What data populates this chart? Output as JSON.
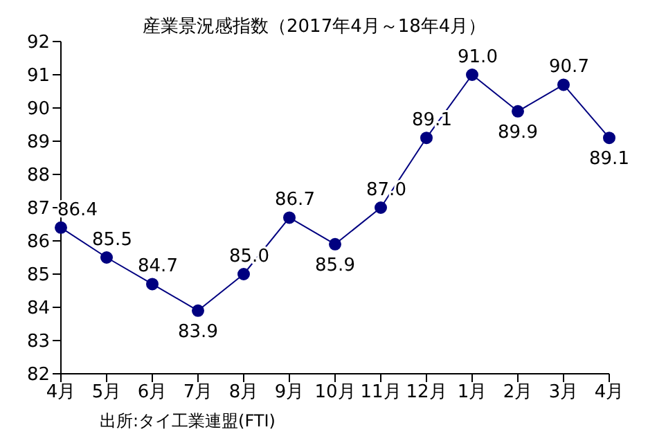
{
  "chart_data": {
    "type": "line",
    "title": "産業景況感指数（2017年4月～18年4月）",
    "categories": [
      "4月",
      "5月",
      "6月",
      "7月",
      "8月",
      "9月",
      "10月",
      "11月",
      "12月",
      "1月",
      "2月",
      "3月",
      "4月"
    ],
    "series": [
      {
        "color": "#000080",
        "values": [
          86.4,
          85.5,
          84.7,
          83.9,
          85.0,
          86.7,
          85.9,
          87.0,
          89.1,
          91.0,
          89.9,
          90.7,
          89.1
        ],
        "value_labels": [
          "86.4",
          "85.5",
          "84.7",
          "83.9",
          "85.0",
          "86.7",
          "85.9",
          "87.0",
          "89.1",
          "91.0",
          "89.9",
          "90.7",
          "89.1"
        ]
      }
    ],
    "ylim": [
      82,
      92
    ],
    "yticks": [
      82,
      83,
      84,
      85,
      86,
      87,
      88,
      89,
      90,
      91,
      92
    ],
    "grid": false,
    "marker": "circle",
    "line_style": "solid",
    "annotations": [
      "出所:タイ工業連盟(FTI)"
    ]
  }
}
